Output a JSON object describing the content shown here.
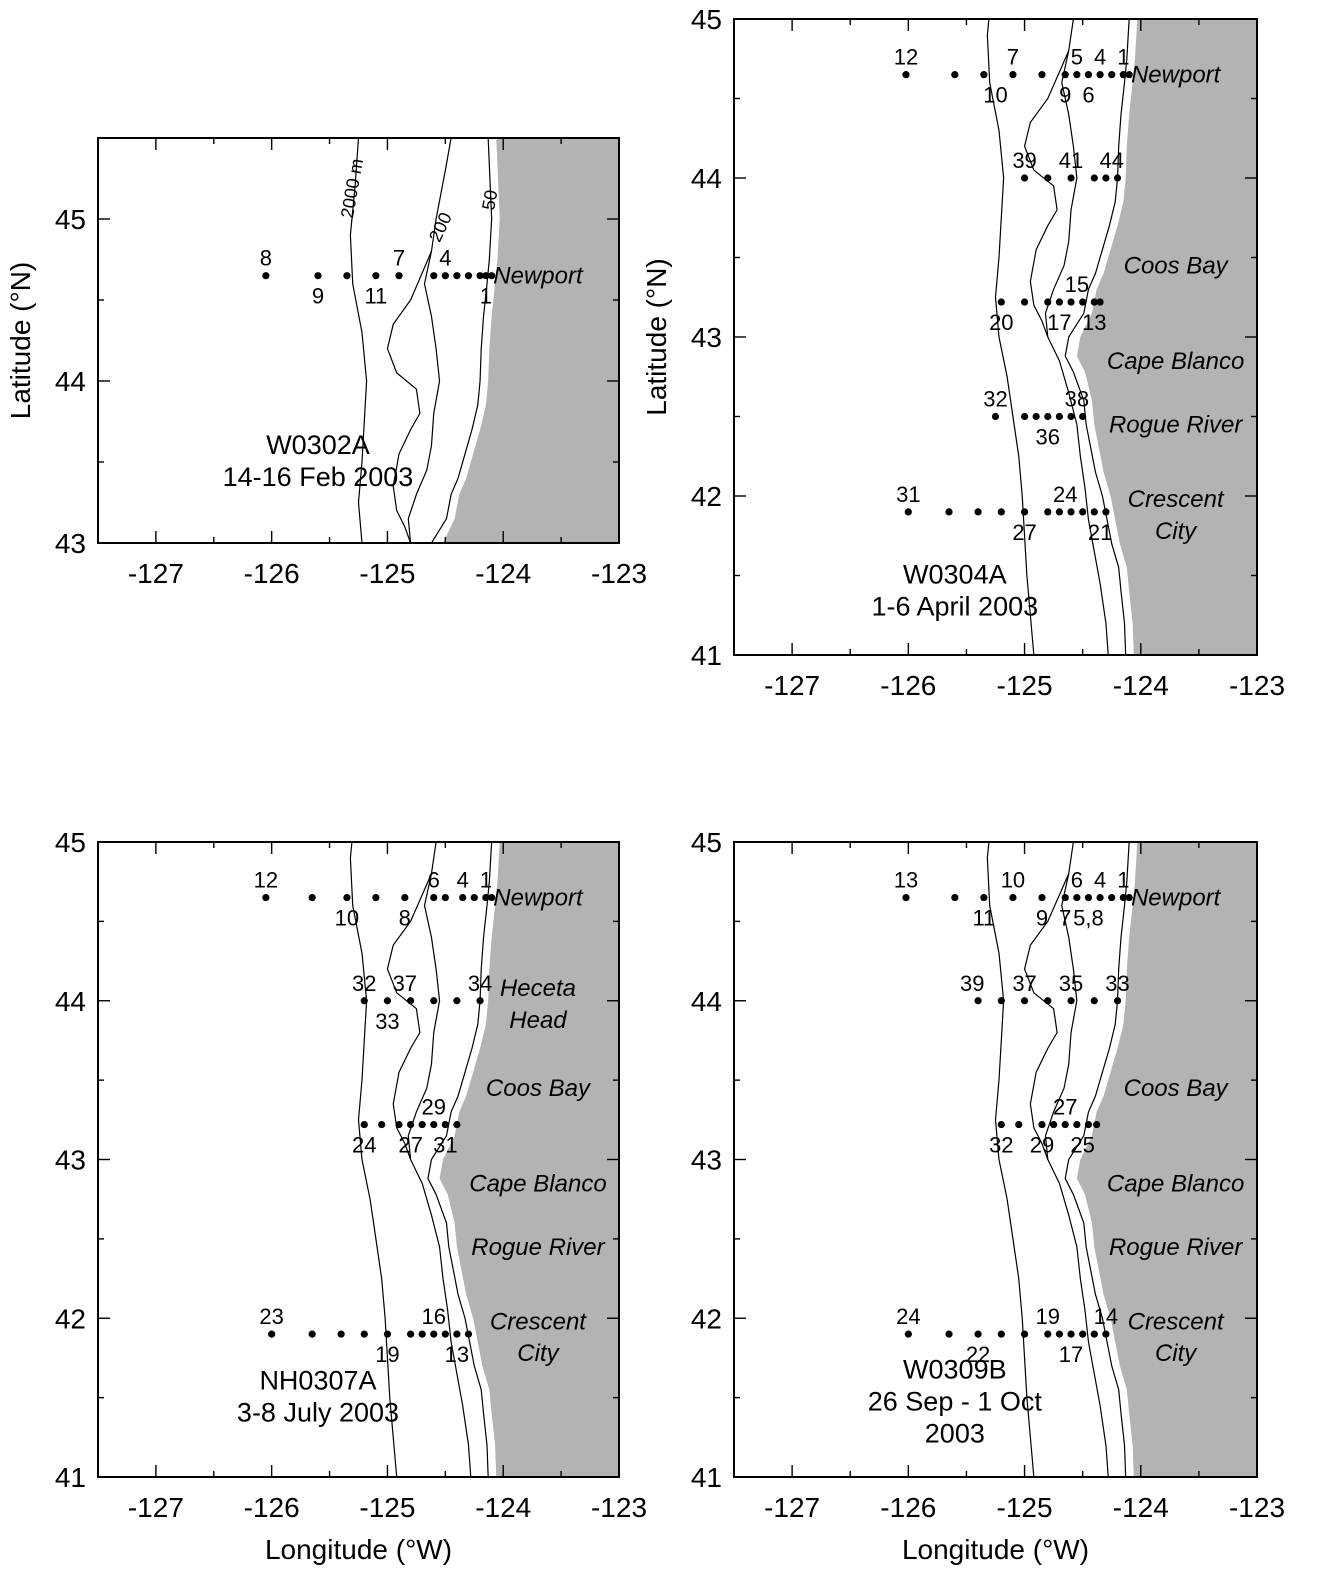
{
  "axes": {
    "xlabel": "Longitude (°W)",
    "ylabel": "Latitude (°N)",
    "xticks": [
      -127,
      -126,
      -125,
      -124,
      -123
    ],
    "yticks_full": [
      41,
      42,
      43,
      44,
      45
    ],
    "yticks_top_left": [
      43,
      44,
      45
    ]
  },
  "colors": {
    "land": "#b3b3b3",
    "station": "#000000"
  },
  "contour_labels": [
    "2000 m",
    "200",
    "50"
  ],
  "panels": [
    {
      "id": "W0302A",
      "title_lines": [
        "W0302A",
        "14-16 Feb 2003"
      ],
      "xlim": [
        -127.5,
        -123
      ],
      "ylim": [
        43,
        45.5
      ],
      "show_xlabel": false,
      "show_ylabel": true,
      "places": [
        {
          "name": "Newport",
          "lat": 44.65
        }
      ],
      "lines": [
        {
          "lat": 44.65,
          "lons": [
            -126.05,
            -125.6,
            -125.35,
            -125.1,
            -124.9,
            -124.6,
            -124.5,
            -124.4,
            -124.3,
            -124.2,
            -124.15,
            -124.1
          ]
        }
      ],
      "labels": [
        {
          "text": "8",
          "lon": -126.05,
          "lat": 44.65,
          "pos": "above"
        },
        {
          "text": "9",
          "lon": -125.6,
          "lat": 44.65,
          "pos": "below"
        },
        {
          "text": "11",
          "lon": -125.1,
          "lat": 44.65,
          "pos": "below"
        },
        {
          "text": "7",
          "lon": -124.9,
          "lat": 44.65,
          "pos": "above"
        },
        {
          "text": "4",
          "lon": -124.5,
          "lat": 44.65,
          "pos": "above"
        },
        {
          "text": "1",
          "lon": -124.15,
          "lat": 44.65,
          "pos": "below"
        }
      ]
    },
    {
      "id": "W0304A",
      "title_lines": [
        "W0304A",
        "1-6 April 2003"
      ],
      "xlim": [
        -127.5,
        -123
      ],
      "ylim": [
        41,
        45
      ],
      "show_xlabel": false,
      "show_ylabel": true,
      "places": [
        {
          "name": "Newport",
          "lat": 44.65
        },
        {
          "name": "Coos Bay",
          "lat": 43.45
        },
        {
          "name": "Cape Blanco",
          "lat": 42.85
        },
        {
          "name": "Rogue River",
          "lat": 42.45
        },
        {
          "name": "Crescent",
          "lat": 41.98
        },
        {
          "name": "City",
          "lat": 41.78
        }
      ],
      "lines": [
        {
          "lat": 44.65,
          "lons": [
            -126.02,
            -125.6,
            -125.35,
            -125.1,
            -124.85,
            -124.65,
            -124.55,
            -124.45,
            -124.35,
            -124.25,
            -124.15,
            -124.1
          ]
        },
        {
          "lat": 44.0,
          "lons": [
            -125.0,
            -124.8,
            -124.6,
            -124.4,
            -124.3,
            -124.2
          ]
        },
        {
          "lat": 43.22,
          "lons": [
            -125.2,
            -125.0,
            -124.8,
            -124.7,
            -124.6,
            -124.5,
            -124.4,
            -124.35
          ]
        },
        {
          "lat": 42.5,
          "lons": [
            -125.25,
            -125.0,
            -124.9,
            -124.8,
            -124.7,
            -124.6,
            -124.5
          ]
        },
        {
          "lat": 41.9,
          "lons": [
            -126.0,
            -125.65,
            -125.4,
            -125.2,
            -125.0,
            -124.8,
            -124.7,
            -124.6,
            -124.5,
            -124.4,
            -124.3
          ]
        }
      ],
      "labels": [
        {
          "text": "12",
          "lon": -126.02,
          "lat": 44.65,
          "pos": "above"
        },
        {
          "text": "7",
          "lon": -125.1,
          "lat": 44.65,
          "pos": "above"
        },
        {
          "text": "10",
          "lon": -125.25,
          "lat": 44.65,
          "pos": "below"
        },
        {
          "text": "5",
          "lon": -124.55,
          "lat": 44.65,
          "pos": "above"
        },
        {
          "text": "4",
          "lon": -124.35,
          "lat": 44.65,
          "pos": "above"
        },
        {
          "text": "1",
          "lon": -124.15,
          "lat": 44.65,
          "pos": "above"
        },
        {
          "text": "9",
          "lon": -124.65,
          "lat": 44.65,
          "pos": "below"
        },
        {
          "text": "6",
          "lon": -124.45,
          "lat": 44.65,
          "pos": "below"
        },
        {
          "text": "39",
          "lon": -125.0,
          "lat": 44.0,
          "pos": "above"
        },
        {
          "text": "41",
          "lon": -124.6,
          "lat": 44.0,
          "pos": "above"
        },
        {
          "text": "44",
          "lon": -124.25,
          "lat": 44.0,
          "pos": "above"
        },
        {
          "text": "15",
          "lon": -124.55,
          "lat": 43.22,
          "pos": "above"
        },
        {
          "text": "20",
          "lon": -125.2,
          "lat": 43.22,
          "pos": "below"
        },
        {
          "text": "17",
          "lon": -124.7,
          "lat": 43.22,
          "pos": "below"
        },
        {
          "text": "13",
          "lon": -124.4,
          "lat": 43.22,
          "pos": "below"
        },
        {
          "text": "32",
          "lon": -125.25,
          "lat": 42.5,
          "pos": "above"
        },
        {
          "text": "38",
          "lon": -124.55,
          "lat": 42.5,
          "pos": "above"
        },
        {
          "text": "36",
          "lon": -124.8,
          "lat": 42.5,
          "pos": "below"
        },
        {
          "text": "31",
          "lon": -126.0,
          "lat": 41.9,
          "pos": "above"
        },
        {
          "text": "24",
          "lon": -124.65,
          "lat": 41.9,
          "pos": "above"
        },
        {
          "text": "27",
          "lon": -125.0,
          "lat": 41.9,
          "pos": "below"
        },
        {
          "text": "21",
          "lon": -124.35,
          "lat": 41.9,
          "pos": "below"
        }
      ]
    },
    {
      "id": "NH0307A",
      "title_lines": [
        "NH0307A",
        "3-8 July 2003"
      ],
      "xlim": [
        -127.5,
        -123
      ],
      "ylim": [
        41,
        45
      ],
      "show_xlabel": true,
      "show_ylabel": false,
      "places": [
        {
          "name": "Newport",
          "lat": 44.65
        },
        {
          "name": "Heceta",
          "lat": 44.08
        },
        {
          "name": "Head",
          "lat": 43.88
        },
        {
          "name": "Coos Bay",
          "lat": 43.45
        },
        {
          "name": "Cape Blanco",
          "lat": 42.85
        },
        {
          "name": "Rogue River",
          "lat": 42.45
        },
        {
          "name": "Crescent",
          "lat": 41.98
        },
        {
          "name": "City",
          "lat": 41.78
        }
      ],
      "lines": [
        {
          "lat": 44.65,
          "lons": [
            -126.05,
            -125.65,
            -125.35,
            -125.1,
            -124.85,
            -124.6,
            -124.5,
            -124.35,
            -124.25,
            -124.15,
            -124.1
          ]
        },
        {
          "lat": 44.0,
          "lons": [
            -125.2,
            -125.0,
            -124.8,
            -124.6,
            -124.4,
            -124.2
          ]
        },
        {
          "lat": 43.22,
          "lons": [
            -125.2,
            -125.05,
            -124.9,
            -124.8,
            -124.7,
            -124.6,
            -124.5,
            -124.4
          ]
        },
        {
          "lat": 41.9,
          "lons": [
            -126.0,
            -125.65,
            -125.4,
            -125.2,
            -125.0,
            -124.8,
            -124.7,
            -124.6,
            -124.5,
            -124.4,
            -124.3
          ]
        }
      ],
      "labels": [
        {
          "text": "12",
          "lon": -126.05,
          "lat": 44.65,
          "pos": "above"
        },
        {
          "text": "10",
          "lon": -125.35,
          "lat": 44.65,
          "pos": "below"
        },
        {
          "text": "8",
          "lon": -124.85,
          "lat": 44.65,
          "pos": "below"
        },
        {
          "text": "6",
          "lon": -124.6,
          "lat": 44.65,
          "pos": "above"
        },
        {
          "text": "4",
          "lon": -124.35,
          "lat": 44.65,
          "pos": "above"
        },
        {
          "text": "1",
          "lon": -124.15,
          "lat": 44.65,
          "pos": "above"
        },
        {
          "text": "32",
          "lon": -125.2,
          "lat": 44.0,
          "pos": "above"
        },
        {
          "text": "37",
          "lon": -124.85,
          "lat": 44.0,
          "pos": "above"
        },
        {
          "text": "34",
          "lon": -124.2,
          "lat": 44.0,
          "pos": "above"
        },
        {
          "text": "33",
          "lon": -125.0,
          "lat": 44.0,
          "pos": "below"
        },
        {
          "text": "29",
          "lon": -124.6,
          "lat": 43.22,
          "pos": "above"
        },
        {
          "text": "24",
          "lon": -125.2,
          "lat": 43.22,
          "pos": "below"
        },
        {
          "text": "27",
          "lon": -124.8,
          "lat": 43.22,
          "pos": "below"
        },
        {
          "text": "31",
          "lon": -124.5,
          "lat": 43.22,
          "pos": "below"
        },
        {
          "text": "23",
          "lon": -126.0,
          "lat": 41.9,
          "pos": "above"
        },
        {
          "text": "16",
          "lon": -124.6,
          "lat": 41.9,
          "pos": "above"
        },
        {
          "text": "19",
          "lon": -125.0,
          "lat": 41.9,
          "pos": "below"
        },
        {
          "text": "13",
          "lon": -124.4,
          "lat": 41.9,
          "pos": "below"
        }
      ]
    },
    {
      "id": "W0309B",
      "title_lines": [
        "W0309B",
        "26 Sep - 1 Oct",
        "2003"
      ],
      "xlim": [
        -127.5,
        -123
      ],
      "ylim": [
        41,
        45
      ],
      "show_xlabel": true,
      "show_ylabel": false,
      "places": [
        {
          "name": "Newport",
          "lat": 44.65
        },
        {
          "name": "Coos Bay",
          "lat": 43.45
        },
        {
          "name": "Cape Blanco",
          "lat": 42.85
        },
        {
          "name": "Rogue River",
          "lat": 42.45
        },
        {
          "name": "Crescent",
          "lat": 41.98
        },
        {
          "name": "City",
          "lat": 41.78
        }
      ],
      "lines": [
        {
          "lat": 44.65,
          "lons": [
            -126.02,
            -125.6,
            -125.35,
            -125.1,
            -124.85,
            -124.65,
            -124.55,
            -124.45,
            -124.35,
            -124.25,
            -124.15,
            -124.1
          ]
        },
        {
          "lat": 44.0,
          "lons": [
            -125.4,
            -125.2,
            -125.0,
            -124.8,
            -124.6,
            -124.4,
            -124.2
          ]
        },
        {
          "lat": 43.22,
          "lons": [
            -125.2,
            -125.05,
            -124.85,
            -124.75,
            -124.65,
            -124.55,
            -124.45,
            -124.38
          ]
        },
        {
          "lat": 41.9,
          "lons": [
            -126.0,
            -125.65,
            -125.4,
            -125.2,
            -125.0,
            -124.8,
            -124.7,
            -124.6,
            -124.5,
            -124.4,
            -124.3
          ]
        }
      ],
      "labels": [
        {
          "text": "13",
          "lon": -126.02,
          "lat": 44.65,
          "pos": "above"
        },
        {
          "text": "11",
          "lon": -125.35,
          "lat": 44.65,
          "pos": "below"
        },
        {
          "text": "10",
          "lon": -125.1,
          "lat": 44.65,
          "pos": "above"
        },
        {
          "text": "9",
          "lon": -124.85,
          "lat": 44.65,
          "pos": "below"
        },
        {
          "text": "7",
          "lon": -124.65,
          "lat": 44.65,
          "pos": "below"
        },
        {
          "text": "5,8",
          "lon": -124.45,
          "lat": 44.65,
          "pos": "below"
        },
        {
          "text": "6",
          "lon": -124.55,
          "lat": 44.65,
          "pos": "above"
        },
        {
          "text": "4",
          "lon": -124.35,
          "lat": 44.65,
          "pos": "above"
        },
        {
          "text": "1",
          "lon": -124.15,
          "lat": 44.65,
          "pos": "above"
        },
        {
          "text": "39",
          "lon": -125.45,
          "lat": 44.0,
          "pos": "above"
        },
        {
          "text": "37",
          "lon": -125.0,
          "lat": 44.0,
          "pos": "above"
        },
        {
          "text": "35",
          "lon": -124.6,
          "lat": 44.0,
          "pos": "above"
        },
        {
          "text": "33",
          "lon": -124.2,
          "lat": 44.0,
          "pos": "above"
        },
        {
          "text": "27",
          "lon": -124.65,
          "lat": 43.22,
          "pos": "above"
        },
        {
          "text": "32",
          "lon": -125.2,
          "lat": 43.22,
          "pos": "below"
        },
        {
          "text": "29",
          "lon": -124.85,
          "lat": 43.22,
          "pos": "below"
        },
        {
          "text": "25",
          "lon": -124.5,
          "lat": 43.22,
          "pos": "below"
        },
        {
          "text": "24",
          "lon": -126.0,
          "lat": 41.9,
          "pos": "above"
        },
        {
          "text": "22",
          "lon": -125.4,
          "lat": 41.9,
          "pos": "below"
        },
        {
          "text": "19",
          "lon": -124.8,
          "lat": 41.9,
          "pos": "above"
        },
        {
          "text": "17",
          "lon": -124.6,
          "lat": 41.9,
          "pos": "below"
        },
        {
          "text": "14",
          "lon": -124.3,
          "lat": 41.9,
          "pos": "above"
        }
      ]
    }
  ]
}
